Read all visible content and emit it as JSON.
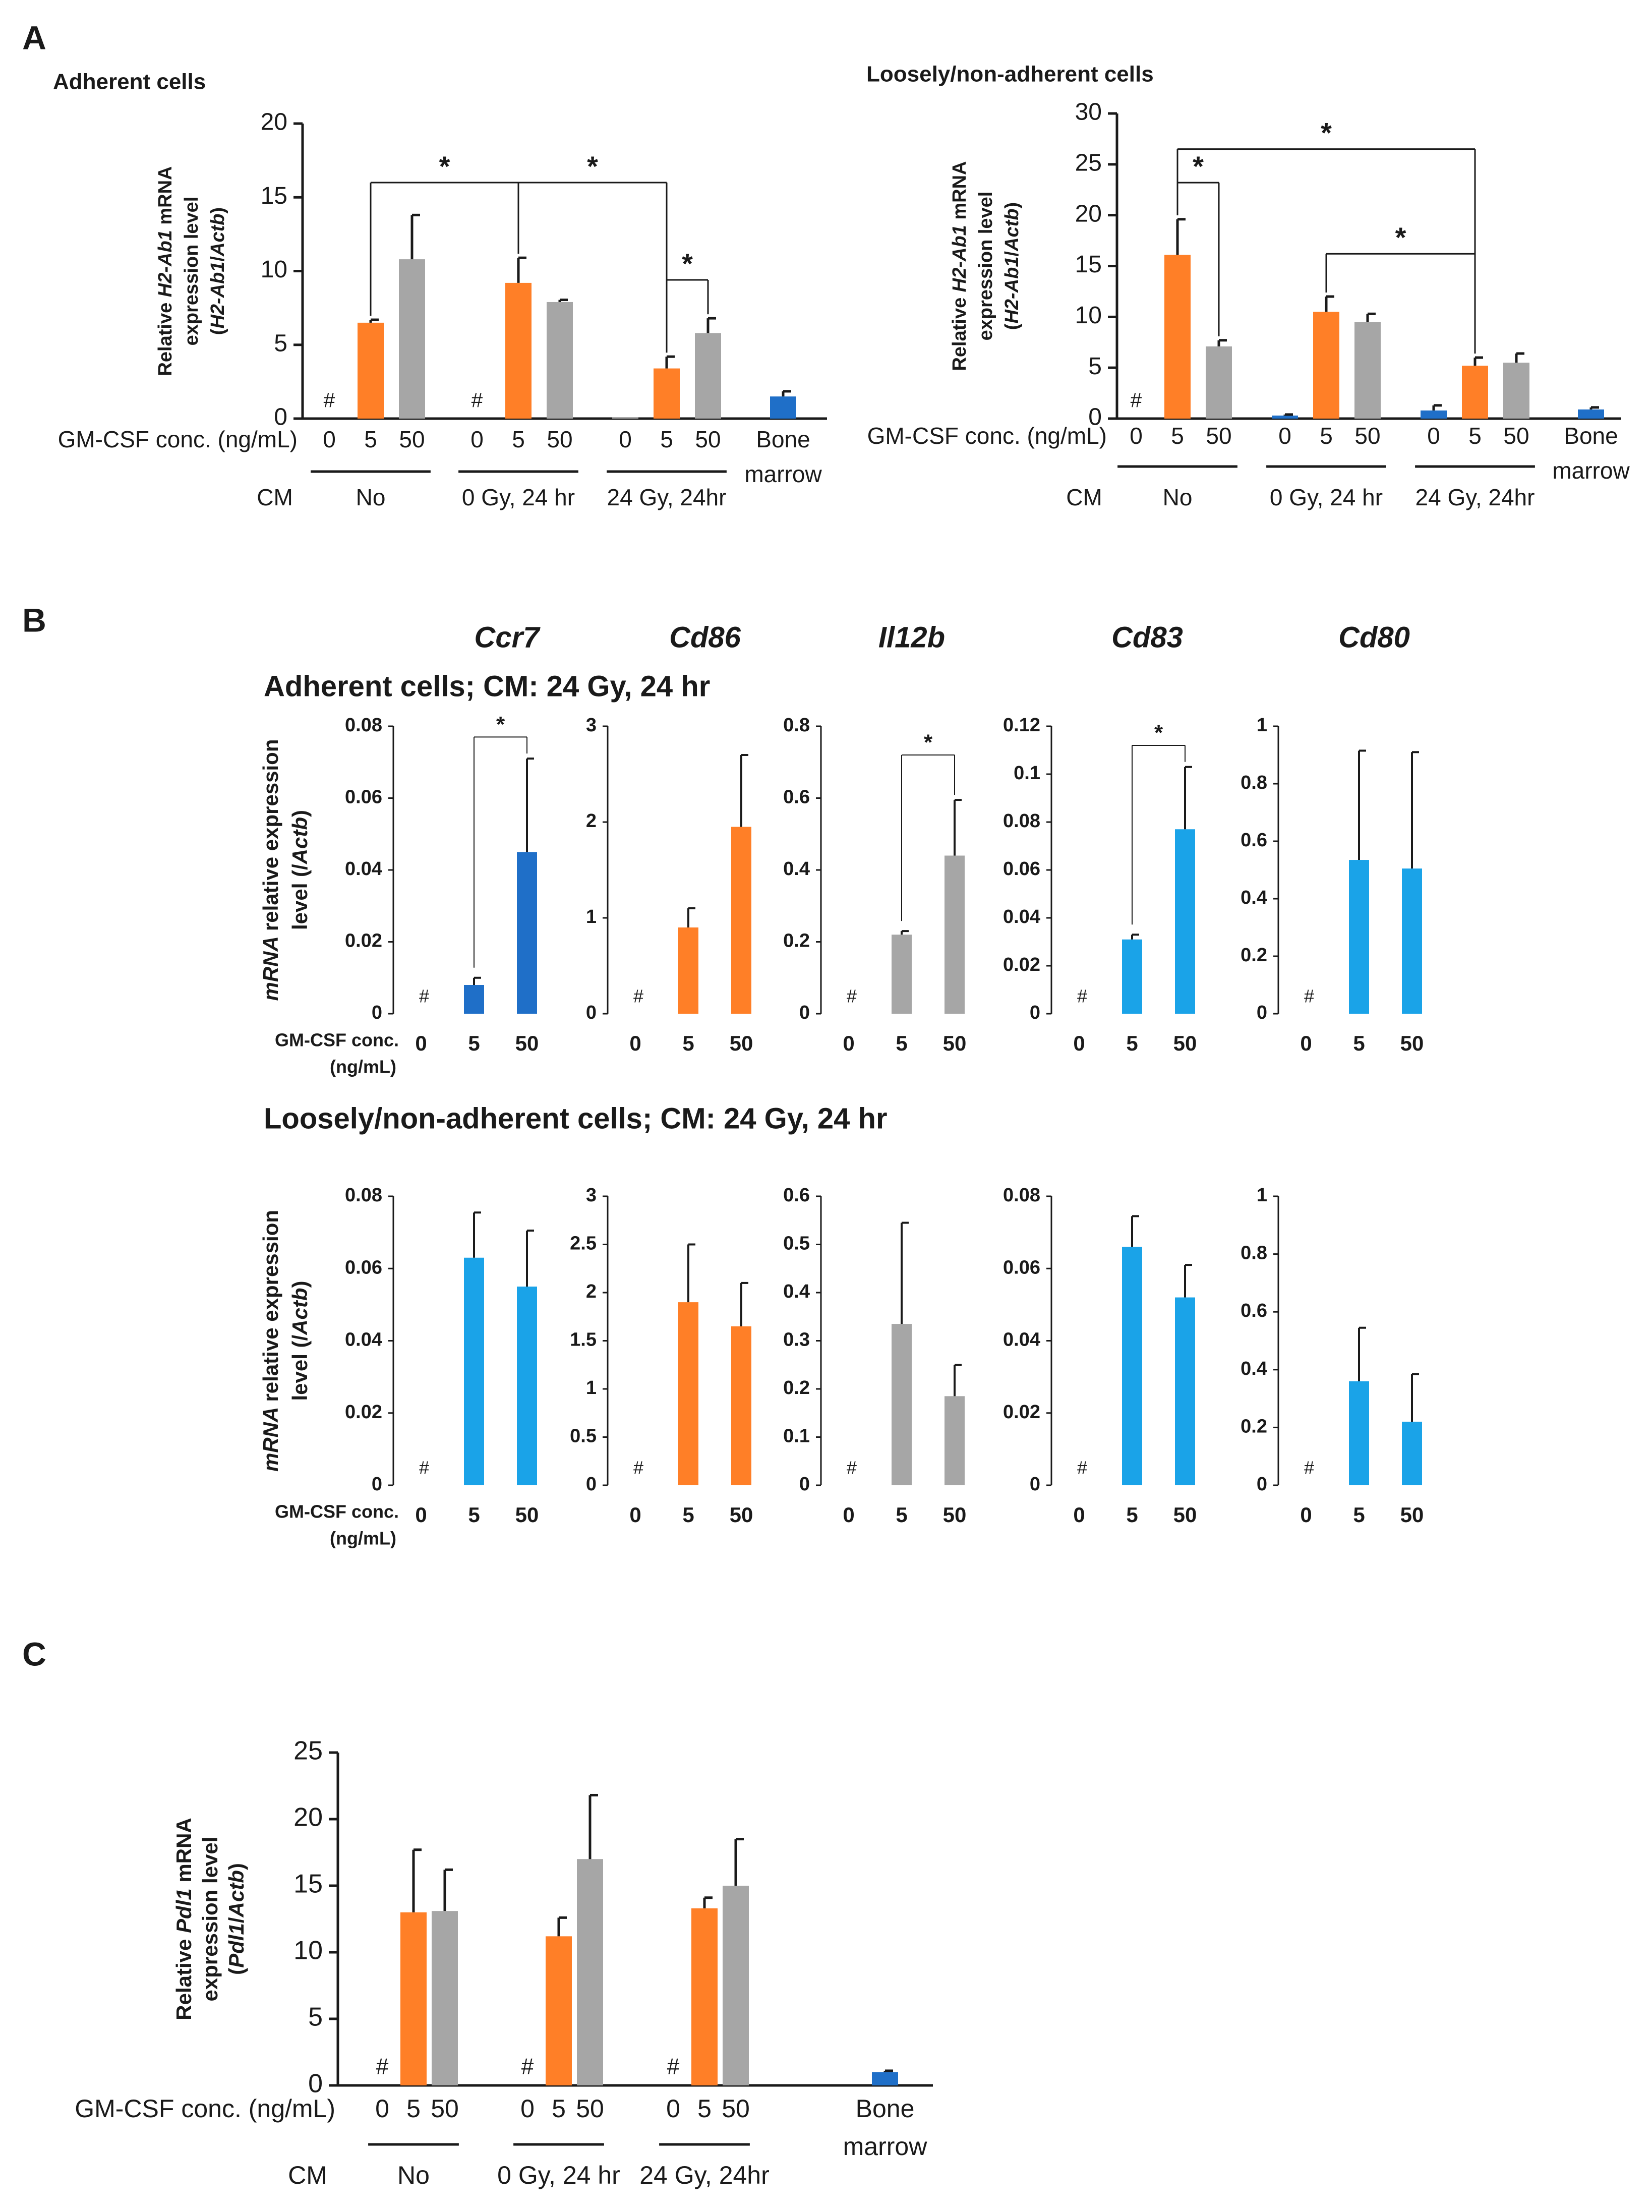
{
  "colors": {
    "orange": "#ff7f27",
    "gray": "#a6a6a6",
    "blue_dark": "#1f6fc8",
    "blue_light": "#1aa3e8",
    "axis": "#1a1a1a"
  },
  "chart_data": {
    "panels": [
      {
        "id": "A",
        "label": "A",
        "charts": [
          {
            "type": "bar",
            "title": "Adherent cells",
            "ylabel": "Relative H2-Ab1 mRNA expression level (H2-Ab1/Actb)",
            "xlabel_rows": {
              "conc_label": "GM-CSF conc. (ng/mL)",
              "cm_label": "CM"
            },
            "ylim": [
              0,
              20
            ],
            "yticks": [
              0,
              5,
              10,
              15,
              20
            ],
            "groups": [
              {
                "cm": "No",
                "bars": [
                  {
                    "x": "0",
                    "value": 0,
                    "err": 0,
                    "color": "orange",
                    "marker": "#"
                  },
                  {
                    "x": "5",
                    "value": 6.5,
                    "err": 0.2,
                    "color": "orange"
                  },
                  {
                    "x": "50",
                    "value": 10.8,
                    "err": 3.0,
                    "color": "gray"
                  }
                ]
              },
              {
                "cm": "0 Gy, 24 hr",
                "bars": [
                  {
                    "x": "0",
                    "value": 0,
                    "err": 0,
                    "color": "orange",
                    "marker": "#"
                  },
                  {
                    "x": "5",
                    "value": 9.2,
                    "err": 1.7,
                    "color": "orange"
                  },
                  {
                    "x": "50",
                    "value": 7.9,
                    "err": 0.15,
                    "color": "gray"
                  }
                ]
              },
              {
                "cm": "24 Gy, 24hr",
                "bars": [
                  {
                    "x": "0",
                    "value": 0.1,
                    "err": 0,
                    "color": "gray"
                  },
                  {
                    "x": "5",
                    "value": 3.4,
                    "err": 0.8,
                    "color": "orange"
                  },
                  {
                    "x": "50",
                    "value": 5.8,
                    "err": 1.0,
                    "color": "gray"
                  }
                ]
              },
              {
                "cm": "",
                "bars": [
                  {
                    "x": "Bone marrow",
                    "value": 1.5,
                    "err": 0.35,
                    "color": "blue_dark"
                  }
                ]
              }
            ],
            "significance": [
              {
                "from": "0.1",
                "to": "1.1",
                "y": 16,
                "label": "*"
              },
              {
                "from": "1.1",
                "to": "2.1",
                "y": 16,
                "label": "*"
              },
              {
                "from": "2.1",
                "to": "2.2",
                "y": 9.4,
                "label": "*"
              }
            ]
          },
          {
            "type": "bar",
            "title": "Loosely/non-adherent cells",
            "ylabel": "Relative H2-Ab1 mRNA expression level (H2-Ab1/Actb)",
            "xlabel_rows": {
              "conc_label": "GM-CSF conc. (ng/mL)",
              "cm_label": "CM"
            },
            "ylim": [
              0,
              30
            ],
            "yticks": [
              0,
              5,
              10,
              15,
              20,
              25,
              30
            ],
            "groups": [
              {
                "cm": "No",
                "bars": [
                  {
                    "x": "0",
                    "value": 0,
                    "err": 0,
                    "color": "orange",
                    "marker": "#"
                  },
                  {
                    "x": "5",
                    "value": 16.1,
                    "err": 3.5,
                    "color": "orange"
                  },
                  {
                    "x": "50",
                    "value": 7.1,
                    "err": 0.6,
                    "color": "gray"
                  }
                ]
              },
              {
                "cm": "0 Gy, 24 hr",
                "bars": [
                  {
                    "x": "0",
                    "value": 0.3,
                    "err": 0.1,
                    "color": "blue_dark"
                  },
                  {
                    "x": "5",
                    "value": 10.5,
                    "err": 1.5,
                    "color": "orange"
                  },
                  {
                    "x": "50",
                    "value": 9.5,
                    "err": 0.8,
                    "color": "gray"
                  }
                ]
              },
              {
                "cm": "24 Gy, 24hr",
                "bars": [
                  {
                    "x": "0",
                    "value": 0.8,
                    "err": 0.5,
                    "color": "blue_dark"
                  },
                  {
                    "x": "5",
                    "value": 5.2,
                    "err": 0.8,
                    "color": "orange"
                  },
                  {
                    "x": "50",
                    "value": 5.5,
                    "err": 0.9,
                    "color": "gray"
                  }
                ]
              },
              {
                "cm": "",
                "bars": [
                  {
                    "x": "Bone marrow",
                    "value": 0.9,
                    "err": 0.2,
                    "color": "blue_dark"
                  }
                ]
              }
            ],
            "significance": [
              {
                "from": "0.1",
                "to": "2.1",
                "y": 26.5,
                "label": "*"
              },
              {
                "from": "0.1",
                "to": "0.2",
                "y": 23.2,
                "label": "*"
              },
              {
                "from": "1.1",
                "to": "2.1",
                "y": 16.2,
                "label": "*"
              }
            ]
          }
        ]
      },
      {
        "id": "B",
        "label": "B",
        "genes": [
          "Ccr7",
          "Cd86",
          "Il12b",
          "Cd83",
          "Cd80"
        ],
        "xlabel": "GM-CSF conc. (ng/mL)",
        "ylabel_prefix": "mRNA",
        "ylabel_suffix": "relative expression level (/Actb)",
        "rows": [
          {
            "title": "Adherent cells; CM: 24 Gy, 24 hr",
            "charts": [
              {
                "type": "bar",
                "gene": "Ccr7",
                "ylim": [
                  0,
                  0.08
                ],
                "yticks": [
                  "0",
                  "0.02",
                  "0.04",
                  "0.06",
                  "0.08"
                ],
                "categories": [
                  "0",
                  "5",
                  "50"
                ],
                "values": [
                  0,
                  0.008,
                  0.045
                ],
                "errors": [
                  0,
                  0.002,
                  0.026
                ],
                "colors": [
                  "blue_dark",
                  "blue_dark",
                  "blue_dark"
                ],
                "marker": "#",
                "significance": {
                  "from": 1,
                  "to": 2,
                  "y": 0.077,
                  "label": "*"
                }
              },
              {
                "type": "bar",
                "gene": "Cd86",
                "ylim": [
                  0,
                  3
                ],
                "yticks": [
                  "0",
                  "1",
                  "2",
                  "3"
                ],
                "categories": [
                  "0",
                  "5",
                  "50"
                ],
                "values": [
                  0,
                  0.9,
                  1.95
                ],
                "errors": [
                  0,
                  0.2,
                  0.75
                ],
                "colors": [
                  "orange",
                  "orange",
                  "orange"
                ],
                "marker": "#"
              },
              {
                "type": "bar",
                "gene": "Il12b",
                "ylim": [
                  0,
                  0.8
                ],
                "yticks": [
                  "0",
                  "0.2",
                  "0.4",
                  "0.6",
                  "0.8"
                ],
                "categories": [
                  "0",
                  "5",
                  "50"
                ],
                "values": [
                  0,
                  0.22,
                  0.44
                ],
                "errors": [
                  0,
                  0.01,
                  0.155
                ],
                "colors": [
                  "gray",
                  "gray",
                  "gray"
                ],
                "marker": "#",
                "significance": {
                  "from": 1,
                  "to": 2,
                  "y": 0.72,
                  "label": "*"
                }
              },
              {
                "type": "bar",
                "gene": "Cd83",
                "ylim": [
                  0,
                  0.12
                ],
                "yticks": [
                  "0",
                  "0.02",
                  "0.04",
                  "0.06",
                  "0.08",
                  "0.1",
                  "0.12"
                ],
                "categories": [
                  "0",
                  "5",
                  "50"
                ],
                "values": [
                  0,
                  0.031,
                  0.077
                ],
                "errors": [
                  0,
                  0.002,
                  0.026
                ],
                "colors": [
                  "blue_light",
                  "blue_light",
                  "blue_light"
                ],
                "marker": "#",
                "significance": {
                  "from": 1,
                  "to": 2,
                  "y": 0.112,
                  "label": "*"
                }
              },
              {
                "type": "bar",
                "gene": "Cd80",
                "ylim": [
                  0,
                  1
                ],
                "yticks": [
                  "0",
                  "0.2",
                  "0.4",
                  "0.6",
                  "0.8",
                  "1"
                ],
                "categories": [
                  "0",
                  "5",
                  "50"
                ],
                "values": [
                  0,
                  0.535,
                  0.505
                ],
                "errors": [
                  0,
                  0.38,
                  0.405
                ],
                "colors": [
                  "blue_light",
                  "blue_light",
                  "blue_light"
                ],
                "marker": "#"
              }
            ]
          },
          {
            "title": "Loosely/non-adherent cells; CM: 24 Gy, 24 hr",
            "charts": [
              {
                "type": "bar",
                "gene": "Ccr7",
                "ylim": [
                  0,
                  0.08
                ],
                "yticks": [
                  "0",
                  "0.02",
                  "0.04",
                  "0.06",
                  "0.08"
                ],
                "categories": [
                  "0",
                  "5",
                  "50"
                ],
                "values": [
                  0,
                  0.063,
                  0.055
                ],
                "errors": [
                  0,
                  0.0125,
                  0.0155
                ],
                "colors": [
                  "blue_light",
                  "blue_light",
                  "blue_light"
                ],
                "marker": "#"
              },
              {
                "type": "bar",
                "gene": "Cd86",
                "ylim": [
                  0,
                  3
                ],
                "yticks": [
                  "0",
                  "0.5",
                  "1",
                  "1.5",
                  "2",
                  "2.5",
                  "3"
                ],
                "categories": [
                  "0",
                  "5",
                  "50"
                ],
                "values": [
                  0,
                  1.9,
                  1.65
                ],
                "errors": [
                  0,
                  0.6,
                  0.45
                ],
                "colors": [
                  "orange",
                  "orange",
                  "orange"
                ],
                "marker": "#"
              },
              {
                "type": "bar",
                "gene": "Il12b",
                "ylim": [
                  0,
                  0.6
                ],
                "yticks": [
                  "0",
                  "0.1",
                  "0.2",
                  "0.3",
                  "0.4",
                  "0.5",
                  "0.6"
                ],
                "categories": [
                  "0",
                  "5",
                  "50"
                ],
                "values": [
                  0,
                  0.335,
                  0.185
                ],
                "errors": [
                  0,
                  0.21,
                  0.065
                ],
                "colors": [
                  "gray",
                  "gray",
                  "gray"
                ],
                "marker": "#"
              },
              {
                "type": "bar",
                "gene": "Cd83",
                "ylim": [
                  0,
                  0.08
                ],
                "yticks": [
                  "0",
                  "0.02",
                  "0.04",
                  "0.06",
                  "0.08"
                ],
                "categories": [
                  "0",
                  "5",
                  "50"
                ],
                "values": [
                  0,
                  0.066,
                  0.052
                ],
                "errors": [
                  0,
                  0.0085,
                  0.009
                ],
                "colors": [
                  "blue_light",
                  "blue_light",
                  "blue_light"
                ],
                "marker": "#"
              },
              {
                "type": "bar",
                "gene": "Cd80",
                "ylim": [
                  0,
                  1
                ],
                "yticks": [
                  "0",
                  "0.2",
                  "0.4",
                  "0.6",
                  "0.8",
                  "1"
                ],
                "categories": [
                  "0",
                  "5",
                  "50"
                ],
                "values": [
                  0,
                  0.36,
                  0.22
                ],
                "errors": [
                  0,
                  0.185,
                  0.165
                ],
                "colors": [
                  "blue_light",
                  "blue_light",
                  "blue_light"
                ],
                "marker": "#"
              }
            ]
          }
        ]
      },
      {
        "id": "C",
        "label": "C",
        "charts": [
          {
            "type": "bar",
            "title": "",
            "ylabel": "Relative Pdl1 mRNA expression level (Pdl1/Actb)",
            "xlabel_rows": {
              "conc_label": "GM-CSF conc. (ng/mL)",
              "cm_label": "CM"
            },
            "ylim": [
              0,
              25
            ],
            "yticks": [
              0,
              5,
              10,
              15,
              20,
              25
            ],
            "groups": [
              {
                "cm": "No",
                "bars": [
                  {
                    "x": "0",
                    "value": 0,
                    "err": 0,
                    "color": "orange",
                    "marker": "#"
                  },
                  {
                    "x": "5",
                    "value": 13.0,
                    "err": 4.7,
                    "color": "orange"
                  },
                  {
                    "x": "50",
                    "value": 13.1,
                    "err": 3.1,
                    "color": "gray"
                  }
                ]
              },
              {
                "cm": "0 Gy, 24 hr",
                "bars": [
                  {
                    "x": "0",
                    "value": 0,
                    "err": 0,
                    "color": "orange",
                    "marker": "#"
                  },
                  {
                    "x": "5",
                    "value": 11.2,
                    "err": 1.4,
                    "color": "orange"
                  },
                  {
                    "x": "50",
                    "value": 17.0,
                    "err": 4.8,
                    "color": "gray"
                  }
                ]
              },
              {
                "cm": "24 Gy, 24hr",
                "bars": [
                  {
                    "x": "0",
                    "value": 0,
                    "err": 0,
                    "color": "orange",
                    "marker": "#"
                  },
                  {
                    "x": "5",
                    "value": 13.3,
                    "err": 0.8,
                    "color": "orange"
                  },
                  {
                    "x": "50",
                    "value": 15.0,
                    "err": 3.5,
                    "color": "gray"
                  }
                ]
              },
              {
                "cm": "",
                "bars": [
                  {
                    "x": "Bone marrow",
                    "value": 1.0,
                    "err": 0.1,
                    "color": "blue_dark"
                  }
                ]
              }
            ],
            "significance": []
          }
        ]
      }
    ]
  }
}
